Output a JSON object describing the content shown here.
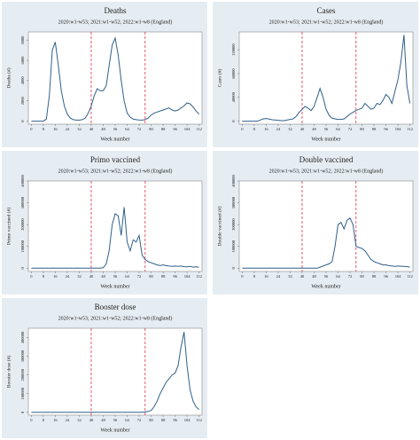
{
  "chart_data": [
    {
      "type": "line",
      "title": "Deaths",
      "subtitle": "2020:w1-w53; 2021:w1-w52; 2022:w1-w8 (England)",
      "x_label": "Week number",
      "y_label": "Deaths (#)",
      "color": "#2f5f8a",
      "vlines": [
        40,
        76
      ],
      "vline_color": "#d9304a",
      "x": [
        0,
        2,
        4,
        6,
        8,
        10,
        12,
        14,
        16,
        18,
        20,
        22,
        24,
        26,
        28,
        30,
        32,
        34,
        36,
        38,
        40,
        42,
        44,
        46,
        48,
        50,
        52,
        54,
        56,
        58,
        60,
        62,
        64,
        66,
        68,
        70,
        72,
        74,
        76,
        78,
        80,
        82,
        84,
        86,
        88,
        90,
        92,
        94,
        96,
        98,
        100,
        102,
        104,
        106,
        108,
        110,
        112
      ],
      "values": [
        0,
        0,
        0,
        0,
        0,
        200,
        2500,
        7000,
        7800,
        5500,
        3000,
        1500,
        700,
        300,
        150,
        100,
        100,
        150,
        300,
        800,
        1500,
        2500,
        3200,
        3000,
        3000,
        3500,
        5500,
        7500,
        8200,
        6500,
        4000,
        2000,
        800,
        400,
        200,
        150,
        120,
        100,
        150,
        300,
        600,
        800,
        900,
        1000,
        1100,
        1200,
        1300,
        1100,
        1000,
        1100,
        1300,
        1500,
        1800,
        1700,
        1400,
        1000,
        700
      ],
      "xlim": [
        -2,
        114
      ],
      "xticks": [
        0,
        8,
        16,
        24,
        32,
        40,
        48,
        56,
        64,
        72,
        80,
        88,
        96,
        104,
        112
      ],
      "ylim": [
        -300,
        8800
      ],
      "yticks": [
        0,
        2000,
        4000,
        6000,
        8000
      ]
    },
    {
      "type": "line",
      "title": "Cases",
      "subtitle": "2020:w1-w53; 2021:w1-w52; 2022:w1-w8 (England)",
      "x_label": "Week number",
      "y_label": "Cases (#)",
      "color": "#2f5f8a",
      "vlines": [
        40,
        76
      ],
      "vline_color": "#d9304a",
      "x": [
        0,
        2,
        4,
        6,
        8,
        10,
        12,
        14,
        16,
        18,
        20,
        22,
        24,
        26,
        28,
        30,
        32,
        34,
        36,
        38,
        40,
        42,
        44,
        46,
        48,
        50,
        52,
        54,
        56,
        58,
        60,
        62,
        64,
        66,
        68,
        70,
        72,
        74,
        76,
        78,
        80,
        82,
        84,
        86,
        88,
        90,
        92,
        94,
        96,
        98,
        100,
        102,
        104,
        106,
        108,
        110,
        112
      ],
      "values": [
        0,
        0,
        0,
        0,
        0,
        0,
        2000,
        4000,
        4500,
        3500,
        2500,
        2000,
        1500,
        1000,
        1000,
        2000,
        3000,
        4000,
        8000,
        15000,
        20000,
        25000,
        22000,
        18000,
        25000,
        40000,
        55000,
        40000,
        20000,
        10000,
        5000,
        4000,
        3000,
        3000,
        4000,
        8000,
        12000,
        15000,
        18000,
        20000,
        22000,
        30000,
        25000,
        20000,
        22000,
        30000,
        28000,
        35000,
        45000,
        40000,
        30000,
        50000,
        70000,
        100000,
        145000,
        60000,
        30000
      ],
      "xlim": [
        -2,
        114
      ],
      "xticks": [
        0,
        8,
        16,
        24,
        32,
        40,
        48,
        56,
        64,
        72,
        80,
        88,
        96,
        104,
        112
      ],
      "ylim": [
        -5000,
        150000
      ],
      "yticks": [
        0,
        40000,
        80000,
        120000
      ]
    },
    {
      "type": "line",
      "title": "Primo vaccined",
      "subtitle": "2020:w1-w53; 2021:w1-w52; 2022:w1-w8 (England)",
      "x_label": "Week number",
      "y_label": "Primo vaccined (#)",
      "color": "#2f5f8a",
      "vlines": [
        40,
        76
      ],
      "vline_color": "#d9304a",
      "x": [
        0,
        2,
        4,
        6,
        8,
        10,
        12,
        14,
        16,
        18,
        20,
        22,
        24,
        26,
        28,
        30,
        32,
        34,
        36,
        38,
        40,
        42,
        44,
        46,
        48,
        50,
        52,
        54,
        56,
        58,
        60,
        62,
        64,
        66,
        68,
        70,
        72,
        74,
        76,
        78,
        80,
        82,
        84,
        86,
        88,
        90,
        92,
        94,
        96,
        98,
        100,
        102,
        104,
        106,
        108,
        110,
        112
      ],
      "values": [
        0,
        0,
        0,
        0,
        0,
        0,
        0,
        0,
        0,
        0,
        0,
        0,
        0,
        0,
        0,
        0,
        0,
        0,
        0,
        0,
        0,
        0,
        0,
        0,
        2000,
        20000,
        80000,
        200000,
        250000,
        240000,
        150000,
        280000,
        120000,
        80000,
        130000,
        120000,
        150000,
        60000,
        40000,
        30000,
        25000,
        20000,
        15000,
        12000,
        15000,
        12000,
        10000,
        8000,
        10000,
        8000,
        10000,
        7000,
        6000,
        8000,
        5000,
        6000,
        4000
      ],
      "xlim": [
        -2,
        114
      ],
      "xticks": [
        0,
        8,
        16,
        24,
        32,
        40,
        48,
        56,
        64,
        72,
        80,
        88,
        96,
        104,
        112
      ],
      "ylim": [
        -15000,
        400000
      ],
      "yticks": [
        0,
        100000,
        200000,
        300000,
        400000
      ]
    },
    {
      "type": "line",
      "title": "Double vaccined",
      "subtitle": "2020:w1-w53; 2021:w1-w52; 2022:w1-w8 (England)",
      "x_label": "Week number",
      "y_label": "Double vaccined (#)",
      "color": "#2f5f8a",
      "vlines": [
        40,
        76
      ],
      "vline_color": "#d9304a",
      "x": [
        0,
        2,
        4,
        6,
        8,
        10,
        12,
        14,
        16,
        18,
        20,
        22,
        24,
        26,
        28,
        30,
        32,
        34,
        36,
        38,
        40,
        42,
        44,
        46,
        48,
        50,
        52,
        54,
        56,
        58,
        60,
        62,
        64,
        66,
        68,
        70,
        72,
        74,
        76,
        78,
        80,
        82,
        84,
        86,
        88,
        90,
        92,
        94,
        96,
        98,
        100,
        102,
        104,
        106,
        108,
        110,
        112
      ],
      "values": [
        0,
        0,
        0,
        0,
        0,
        0,
        0,
        0,
        0,
        0,
        0,
        0,
        0,
        0,
        0,
        0,
        0,
        0,
        0,
        0,
        0,
        0,
        0,
        0,
        0,
        0,
        5000,
        10000,
        15000,
        20000,
        30000,
        100000,
        200000,
        210000,
        180000,
        220000,
        230000,
        200000,
        100000,
        95000,
        90000,
        80000,
        60000,
        40000,
        30000,
        25000,
        20000,
        15000,
        15000,
        12000,
        10000,
        8000,
        10000,
        9000,
        8000,
        7000,
        5000
      ],
      "xlim": [
        -2,
        114
      ],
      "xticks": [
        0,
        8,
        16,
        24,
        32,
        40,
        48,
        56,
        64,
        72,
        80,
        88,
        96,
        104,
        112
      ],
      "ylim": [
        -15000,
        400000
      ],
      "yticks": [
        0,
        100000,
        200000,
        300000,
        400000
      ]
    },
    {
      "type": "line",
      "title": "Booster dose",
      "subtitle": "2020:w1-w53; 2021:w1-w52; 2022:w1-w8 (England)",
      "x_label": "Week number",
      "y_label": "Booster dose (#)",
      "color": "#2f5f8a",
      "vlines": [
        40,
        76
      ],
      "vline_color": "#d9304a",
      "x": [
        0,
        2,
        4,
        6,
        8,
        10,
        12,
        14,
        16,
        18,
        20,
        22,
        24,
        26,
        28,
        30,
        32,
        34,
        36,
        38,
        40,
        42,
        44,
        46,
        48,
        50,
        52,
        54,
        56,
        58,
        60,
        62,
        64,
        66,
        68,
        70,
        72,
        74,
        76,
        78,
        80,
        82,
        84,
        86,
        88,
        90,
        92,
        94,
        96,
        98,
        100,
        102,
        104,
        106,
        108,
        110,
        112
      ],
      "values": [
        0,
        0,
        0,
        0,
        0,
        0,
        0,
        0,
        0,
        0,
        0,
        0,
        0,
        0,
        0,
        0,
        0,
        0,
        0,
        0,
        0,
        0,
        0,
        0,
        0,
        0,
        0,
        0,
        0,
        0,
        0,
        0,
        0,
        0,
        0,
        0,
        0,
        0,
        2000,
        5000,
        10000,
        30000,
        60000,
        100000,
        130000,
        160000,
        180000,
        200000,
        210000,
        250000,
        350000,
        430000,
        250000,
        120000,
        60000,
        30000,
        15000
      ],
      "xlim": [
        -2,
        114
      ],
      "xticks": [
        0,
        8,
        16,
        24,
        32,
        40,
        48,
        56,
        64,
        72,
        80,
        88,
        96,
        104,
        112
      ],
      "ylim": [
        -15000,
        450000
      ],
      "yticks": [
        0,
        100000,
        200000,
        300000,
        400000
      ]
    }
  ]
}
